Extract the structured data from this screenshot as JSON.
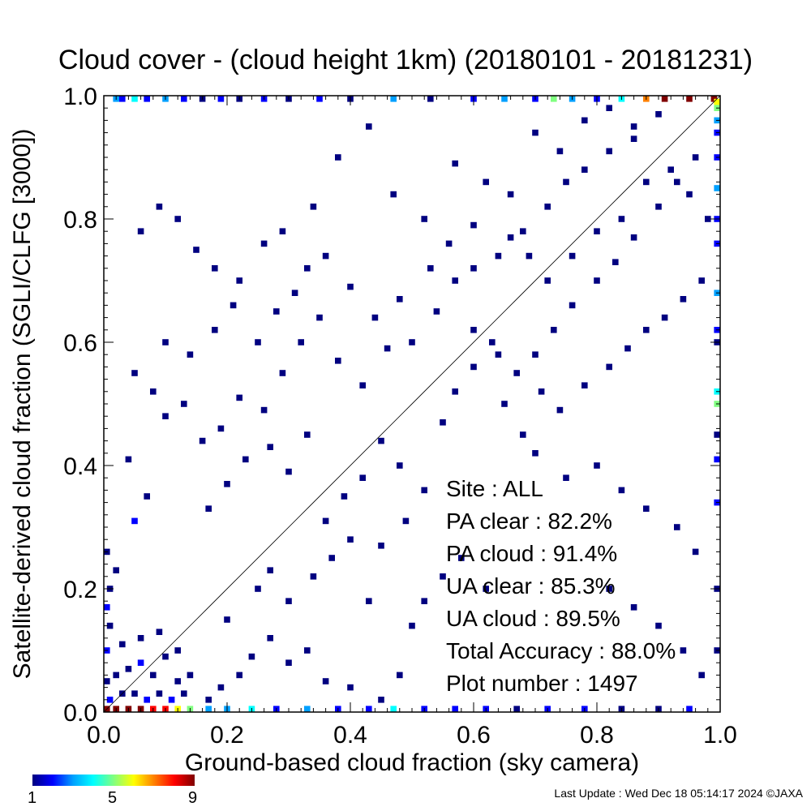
{
  "title": "Cloud cover - (cloud height 1km)  (20180101 - 20181231)",
  "footer": "Last Update : Wed Dec 18 05:14:17 2024  ©JAXA",
  "stats": {
    "site": "Site : ALL",
    "pa_clear": "PA clear :  82.2%",
    "pa_cloud": "PA cloud :  91.4%",
    "ua_clear": "UA clear :  85.3%",
    "ua_cloud": "UA cloud :  89.5%",
    "total": "Total Accuracy :  88.0%",
    "plot_number": "Plot number :      1497"
  },
  "colorbar": {
    "min_label": "1",
    "mid_label": "5",
    "max_label": "9",
    "colors": [
      "#000080",
      "#0000ff",
      "#00a0ff",
      "#00ffff",
      "#80ff80",
      "#ffff00",
      "#ff8000",
      "#ff0000",
      "#800000"
    ]
  },
  "chart_data": {
    "type": "heatmap",
    "xlabel": "Ground-based cloud fraction (sky camera)",
    "ylabel": "Satellite-derived cloud fraction (SGLI/CLFG [3000])",
    "xlim": [
      0,
      1
    ],
    "ylim": [
      0,
      1
    ],
    "xticks": [
      "0.0",
      "0.2",
      "0.4",
      "0.6",
      "0.8",
      "1.0"
    ],
    "yticks": [
      "0.0",
      "0.2",
      "0.4",
      "0.6",
      "0.8",
      "1.0"
    ],
    "reference_line": "y = x",
    "cells": [
      [
        0.02,
        1.0,
        3
      ],
      [
        0.03,
        1.0,
        2
      ],
      [
        0.05,
        1.0,
        4
      ],
      [
        0.07,
        1.0,
        2
      ],
      [
        0.1,
        1.0,
        3
      ],
      [
        0.13,
        1.0,
        2
      ],
      [
        0.16,
        1.0,
        1
      ],
      [
        0.19,
        1.0,
        2
      ],
      [
        0.22,
        1.0,
        1
      ],
      [
        0.26,
        1.0,
        2
      ],
      [
        0.3,
        1.0,
        1
      ],
      [
        0.35,
        1.0,
        2
      ],
      [
        0.4,
        1.0,
        1
      ],
      [
        0.47,
        1.0,
        3
      ],
      [
        0.53,
        1.0,
        1
      ],
      [
        0.6,
        1.0,
        2
      ],
      [
        0.65,
        1.0,
        3
      ],
      [
        0.7,
        1.0,
        2
      ],
      [
        0.73,
        1.0,
        5
      ],
      [
        0.76,
        1.0,
        3
      ],
      [
        0.8,
        1.0,
        2
      ],
      [
        0.84,
        1.0,
        4
      ],
      [
        0.88,
        1.0,
        7
      ],
      [
        0.91,
        1.0,
        9
      ],
      [
        0.95,
        1.0,
        9
      ],
      [
        0.99,
        1.0,
        9
      ],
      [
        1.0,
        0.99,
        6
      ],
      [
        1.0,
        0.98,
        5
      ],
      [
        1.0,
        0.96,
        3
      ],
      [
        1.0,
        0.94,
        2
      ],
      [
        1.0,
        0.9,
        2
      ],
      [
        1.0,
        0.85,
        3
      ],
      [
        1.0,
        0.8,
        2
      ],
      [
        1.0,
        0.76,
        2
      ],
      [
        1.0,
        0.68,
        3
      ],
      [
        1.0,
        0.62,
        2
      ],
      [
        1.0,
        0.6,
        1
      ],
      [
        1.0,
        0.52,
        4
      ],
      [
        1.0,
        0.5,
        5
      ],
      [
        1.0,
        0.45,
        1
      ],
      [
        1.0,
        0.41,
        2
      ],
      [
        1.0,
        0.34,
        2
      ],
      [
        1.0,
        0.2,
        1
      ],
      [
        1.0,
        0.1,
        1
      ],
      [
        0.0,
        0.0,
        9
      ],
      [
        0.02,
        0.0,
        9
      ],
      [
        0.04,
        0.0,
        9
      ],
      [
        0.06,
        0.0,
        9
      ],
      [
        0.08,
        0.0,
        8
      ],
      [
        0.1,
        0.0,
        8
      ],
      [
        0.12,
        0.0,
        6
      ],
      [
        0.14,
        0.0,
        5
      ],
      [
        0.17,
        0.0,
        3
      ],
      [
        0.2,
        0.0,
        3
      ],
      [
        0.24,
        0.0,
        4
      ],
      [
        0.28,
        0.0,
        2
      ],
      [
        0.33,
        0.0,
        3
      ],
      [
        0.38,
        0.0,
        2
      ],
      [
        0.43,
        0.0,
        2
      ],
      [
        0.47,
        0.0,
        4
      ],
      [
        0.52,
        0.0,
        2
      ],
      [
        0.57,
        0.0,
        2
      ],
      [
        0.62,
        0.0,
        2
      ],
      [
        0.67,
        0.0,
        1
      ],
      [
        0.72,
        0.0,
        2
      ],
      [
        0.78,
        0.0,
        2
      ],
      [
        0.84,
        0.0,
        1
      ],
      [
        0.9,
        0.0,
        1
      ],
      [
        0.95,
        0.0,
        2
      ],
      [
        0.01,
        0.02,
        2
      ],
      [
        0.03,
        0.03,
        1
      ],
      [
        0.05,
        0.03,
        1
      ],
      [
        0.07,
        0.02,
        2
      ],
      [
        0.09,
        0.03,
        1
      ],
      [
        0.11,
        0.02,
        2
      ],
      [
        0.13,
        0.03,
        1
      ],
      [
        0.0,
        0.05,
        1
      ],
      [
        0.02,
        0.06,
        1
      ],
      [
        0.04,
        0.07,
        1
      ],
      [
        0.06,
        0.08,
        2
      ],
      [
        0.08,
        0.06,
        1
      ],
      [
        0.1,
        0.09,
        1
      ],
      [
        0.12,
        0.05,
        1
      ],
      [
        0.14,
        0.06,
        1
      ],
      [
        0.0,
        0.1,
        2
      ],
      [
        0.03,
        0.11,
        1
      ],
      [
        0.06,
        0.12,
        1
      ],
      [
        0.09,
        0.13,
        1
      ],
      [
        0.12,
        0.1,
        1
      ],
      [
        0.01,
        0.14,
        1
      ],
      [
        0.0,
        0.17,
        2
      ],
      [
        0.01,
        0.2,
        1
      ],
      [
        0.02,
        0.23,
        1
      ],
      [
        0.0,
        0.26,
        1
      ],
      [
        0.05,
        0.31,
        2
      ],
      [
        0.07,
        0.35,
        1
      ],
      [
        0.04,
        0.41,
        1
      ],
      [
        0.17,
        0.02,
        1
      ],
      [
        0.19,
        0.04,
        1
      ],
      [
        0.22,
        0.06,
        1
      ],
      [
        0.24,
        0.09,
        1
      ],
      [
        0.27,
        0.12,
        1
      ],
      [
        0.3,
        0.08,
        1
      ],
      [
        0.33,
        0.1,
        1
      ],
      [
        0.36,
        0.05,
        1
      ],
      [
        0.4,
        0.04,
        1
      ],
      [
        0.45,
        0.02,
        1
      ],
      [
        0.48,
        0.06,
        1
      ],
      [
        0.2,
        0.15,
        1
      ],
      [
        0.25,
        0.2,
        1
      ],
      [
        0.27,
        0.23,
        1
      ],
      [
        0.3,
        0.18,
        1
      ],
      [
        0.34,
        0.22,
        1
      ],
      [
        0.37,
        0.25,
        1
      ],
      [
        0.4,
        0.28,
        1
      ],
      [
        0.45,
        0.27,
        1
      ],
      [
        0.43,
        0.18,
        1
      ],
      [
        0.5,
        0.14,
        1
      ],
      [
        0.52,
        0.18,
        1
      ],
      [
        0.55,
        0.22,
        1
      ],
      [
        0.58,
        0.25,
        1
      ],
      [
        0.62,
        0.2,
        1
      ],
      [
        0.17,
        0.33,
        1
      ],
      [
        0.2,
        0.37,
        1
      ],
      [
        0.23,
        0.41,
        1
      ],
      [
        0.27,
        0.43,
        1
      ],
      [
        0.3,
        0.39,
        1
      ],
      [
        0.33,
        0.45,
        1
      ],
      [
        0.36,
        0.31,
        1
      ],
      [
        0.39,
        0.35,
        1
      ],
      [
        0.42,
        0.38,
        1
      ],
      [
        0.45,
        0.44,
        1
      ],
      [
        0.48,
        0.4,
        1
      ],
      [
        0.52,
        0.36,
        1
      ],
      [
        0.49,
        0.31,
        1
      ],
      [
        0.55,
        0.47,
        1
      ],
      [
        0.57,
        0.52,
        1
      ],
      [
        0.6,
        0.56,
        1
      ],
      [
        0.63,
        0.6,
        1
      ],
      [
        0.65,
        0.5,
        1
      ],
      [
        0.68,
        0.45,
        1
      ],
      [
        0.7,
        0.58,
        1
      ],
      [
        0.73,
        0.62,
        1
      ],
      [
        0.76,
        0.66,
        1
      ],
      [
        0.8,
        0.7,
        1
      ],
      [
        0.83,
        0.73,
        1
      ],
      [
        0.86,
        0.77,
        1
      ],
      [
        0.9,
        0.82,
        1
      ],
      [
        0.93,
        0.86,
        1
      ],
      [
        0.96,
        0.9,
        1
      ],
      [
        0.05,
        0.55,
        1
      ],
      [
        0.08,
        0.52,
        1
      ],
      [
        0.1,
        0.48,
        1
      ],
      [
        0.13,
        0.5,
        1
      ],
      [
        0.16,
        0.44,
        1
      ],
      [
        0.19,
        0.46,
        1
      ],
      [
        0.22,
        0.51,
        1
      ],
      [
        0.26,
        0.49,
        1
      ],
      [
        0.29,
        0.55,
        1
      ],
      [
        0.32,
        0.6,
        1
      ],
      [
        0.35,
        0.64,
        1
      ],
      [
        0.38,
        0.57,
        1
      ],
      [
        0.42,
        0.53,
        1
      ],
      [
        0.46,
        0.59,
        1
      ],
      [
        0.5,
        0.6,
        1
      ],
      [
        0.54,
        0.65,
        1
      ],
      [
        0.57,
        0.7,
        1
      ],
      [
        0.6,
        0.72,
        1
      ],
      [
        0.64,
        0.74,
        1
      ],
      [
        0.68,
        0.78,
        1
      ],
      [
        0.72,
        0.82,
        1
      ],
      [
        0.75,
        0.86,
        1
      ],
      [
        0.78,
        0.88,
        1
      ],
      [
        0.82,
        0.91,
        1
      ],
      [
        0.86,
        0.93,
        1
      ],
      [
        0.06,
        0.78,
        1
      ],
      [
        0.09,
        0.82,
        1
      ],
      [
        0.12,
        0.8,
        1
      ],
      [
        0.15,
        0.75,
        1
      ],
      [
        0.18,
        0.72,
        1
      ],
      [
        0.22,
        0.7,
        1
      ],
      [
        0.26,
        0.76,
        1
      ],
      [
        0.29,
        0.78,
        1
      ],
      [
        0.34,
        0.82,
        1
      ],
      [
        0.38,
        0.9,
        1
      ],
      [
        0.43,
        0.95,
        1
      ],
      [
        0.47,
        0.84,
        1
      ],
      [
        0.52,
        0.8,
        1
      ],
      [
        0.57,
        0.89,
        1
      ],
      [
        0.62,
        0.86,
        1
      ],
      [
        0.66,
        0.84,
        1
      ],
      [
        0.7,
        0.94,
        1
      ],
      [
        0.74,
        0.91,
        1
      ],
      [
        0.78,
        0.96,
        1
      ],
      [
        0.82,
        0.98,
        1
      ],
      [
        0.86,
        0.95,
        1
      ],
      [
        0.9,
        0.97,
        1
      ],
      [
        0.6,
        0.62,
        1
      ],
      [
        0.64,
        0.58,
        1
      ],
      [
        0.67,
        0.55,
        1
      ],
      [
        0.71,
        0.52,
        1
      ],
      [
        0.74,
        0.49,
        1
      ],
      [
        0.78,
        0.53,
        1
      ],
      [
        0.82,
        0.56,
        1
      ],
      [
        0.85,
        0.59,
        1
      ],
      [
        0.88,
        0.62,
        1
      ],
      [
        0.91,
        0.64,
        1
      ],
      [
        0.94,
        0.67,
        1
      ],
      [
        0.97,
        0.7,
        1
      ],
      [
        0.7,
        0.42,
        1
      ],
      [
        0.75,
        0.38,
        1
      ],
      [
        0.8,
        0.4,
        1
      ],
      [
        0.84,
        0.36,
        1
      ],
      [
        0.88,
        0.33,
        1
      ],
      [
        0.93,
        0.3,
        1
      ],
      [
        0.96,
        0.26,
        1
      ],
      [
        0.82,
        0.2,
        1
      ],
      [
        0.86,
        0.17,
        1
      ],
      [
        0.9,
        0.14,
        1
      ],
      [
        0.94,
        0.1,
        1
      ],
      [
        0.97,
        0.06,
        1
      ],
      [
        0.1,
        0.6,
        1
      ],
      [
        0.14,
        0.58,
        1
      ],
      [
        0.18,
        0.62,
        1
      ],
      [
        0.21,
        0.66,
        1
      ],
      [
        0.25,
        0.6,
        1
      ],
      [
        0.28,
        0.65,
        1
      ],
      [
        0.31,
        0.68,
        1
      ],
      [
        0.33,
        0.72,
        1
      ],
      [
        0.36,
        0.74,
        1
      ],
      [
        0.4,
        0.69,
        1
      ],
      [
        0.44,
        0.64,
        1
      ],
      [
        0.48,
        0.67,
        1
      ],
      [
        0.53,
        0.72,
        1
      ],
      [
        0.56,
        0.76,
        1
      ],
      [
        0.6,
        0.79,
        1
      ],
      [
        0.66,
        0.77,
        1
      ],
      [
        0.69,
        0.74,
        1
      ],
      [
        0.72,
        0.7,
        1
      ],
      [
        0.76,
        0.74,
        1
      ],
      [
        0.8,
        0.78,
        1
      ],
      [
        0.84,
        0.8,
        1
      ],
      [
        0.88,
        0.86,
        1
      ],
      [
        0.92,
        0.88,
        1
      ],
      [
        0.95,
        0.84,
        1
      ],
      [
        0.98,
        0.8,
        1
      ]
    ]
  }
}
